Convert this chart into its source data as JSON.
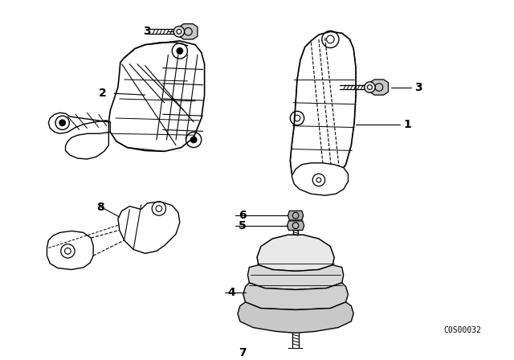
{
  "background_color": "#ffffff",
  "line_color": "#000000",
  "diagram_code": "C0S00032",
  "fig_width": 6.4,
  "fig_height": 4.48,
  "dpi": 100
}
